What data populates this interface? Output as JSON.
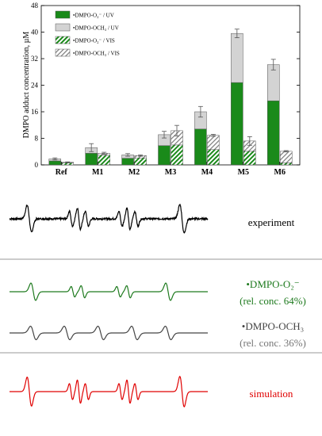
{
  "chart_data": {
    "type": "bar",
    "ylabel": "DMPO adduct concentration, µM",
    "ylim": [
      0,
      48
    ],
    "yticks": [
      0,
      8,
      16,
      24,
      32,
      40,
      48
    ],
    "categories": [
      "Ref",
      "M1",
      "M2",
      "M3",
      "M4",
      "M5",
      "M6"
    ],
    "legend_position": "top-left",
    "series": [
      {
        "name": "•DMPO-O₂⁻ / UV",
        "stack": "UV",
        "color": "#1a8a1a",
        "pattern": "solid",
        "values": [
          1.2,
          3.5,
          2.0,
          5.8,
          10.8,
          24.8,
          19.3
        ]
      },
      {
        "name": "•DMPO-OCH₃ / UV",
        "stack": "UV",
        "color": "#d3d3d3",
        "pattern": "solid",
        "values": [
          0.6,
          1.7,
          1.0,
          3.3,
          5.2,
          14.8,
          10.9
        ],
        "errors": [
          0.3,
          1.2,
          0.4,
          1.0,
          1.6,
          1.3,
          1.6
        ]
      },
      {
        "name": "•DMPO-O₂⁻ / VIS",
        "stack": "VIS",
        "color": "#1a8a1a",
        "pattern": "hatched",
        "values": [
          0.6,
          2.9,
          2.1,
          6.0,
          4.6,
          4.1,
          0.6
        ]
      },
      {
        "name": "•DMPO-OCH₃ / VIS",
        "stack": "VIS",
        "color": "#9a9a9a",
        "pattern": "hatched",
        "values": [
          0.2,
          0.6,
          0.7,
          4.3,
          4.3,
          3.1,
          3.5
        ],
        "errors": [
          0.1,
          0.3,
          0.2,
          1.6,
          0.3,
          1.3,
          0.2
        ]
      }
    ]
  },
  "spectra": {
    "experiment_label": "experiment",
    "o2_label": "•DMPO-O₂⁻",
    "o2_conc": "(rel. conc. 64%)",
    "och3_label": "•DMPO-OCH₃",
    "och3_conc": "(rel. conc. 36%)",
    "simulation_label": "simulation",
    "colors": {
      "experiment": "#000000",
      "o2": "#1e7a1e",
      "och3": "#444444",
      "simulation": "#e00000"
    }
  }
}
